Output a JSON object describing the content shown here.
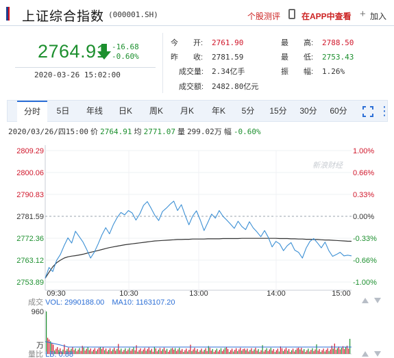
{
  "header": {
    "title": "上证综合指数",
    "code": "(000001.SH)",
    "links": {
      "review": "个股测评",
      "app": "在APP中查看",
      "add": "加入"
    }
  },
  "quote": {
    "price": "2764.91",
    "change": "-16.68",
    "change_pct": "-0.60%",
    "datetime": "2020-03-26 15:02:00",
    "direction": "down"
  },
  "stats": {
    "open_label": "今　　开:",
    "open": "2761.90",
    "prev_close_label": "昨　　收:",
    "prev_close": "2781.59",
    "volume_label": "成交量:",
    "volume": "2.34亿手",
    "amount_label": "成交额:",
    "amount": "2482.80亿元",
    "high_label": "最　　高:",
    "high": "2788.50",
    "low_label": "最　　低:",
    "low": "2753.43",
    "amplitude_label": "振　　幅:",
    "amplitude": "1.26%"
  },
  "tabs": [
    "分时",
    "5日",
    "年线",
    "日K",
    "周K",
    "月K",
    "年K",
    "5分",
    "15分",
    "30分",
    "60分"
  ],
  "active_tab": "分时",
  "info_line": {
    "date": "2020/03/26/四15:00",
    "price_label": "价",
    "price": "2764.91",
    "avg_label": "均",
    "avg": "2771.07",
    "vol_label": "量",
    "vol": "299.02万",
    "pct_label": "幅",
    "pct": "-0.60%"
  },
  "chart_data": {
    "type": "line",
    "y_ticks_left": [
      "2809.29",
      "2800.06",
      "2790.83",
      "2781.59",
      "2772.36",
      "2763.12",
      "2753.89"
    ],
    "y_ticks_right": [
      "1.00%",
      "0.66%",
      "0.33%",
      "0.00%",
      "-0.33%",
      "-0.66%",
      "-1.00%"
    ],
    "x_ticks": [
      "09:30",
      "10:30",
      "13:00",
      "14:00",
      "15:00"
    ],
    "ylim": [
      2753.89,
      2809.29
    ],
    "prev_close": 2781.59,
    "series": [
      {
        "values": [
          2755.5,
          2760.0,
          2758.3,
          2763.0,
          2765.5,
          2769.2,
          2772.5,
          2770.3,
          2775.3,
          2773.0,
          2770.7,
          2767.5,
          2764.0,
          2766.5,
          2770.0,
          2773.8,
          2776.8,
          2774.2,
          2778.0,
          2781.0,
          2783.2,
          2782.2,
          2784.0,
          2783.0,
          2780.0,
          2782.6,
          2786.2,
          2787.8,
          2785.0,
          2782.0,
          2779.8,
          2783.6,
          2785.0,
          2786.6,
          2788.0,
          2784.0,
          2786.5,
          2782.0,
          2778.0,
          2781.7,
          2783.9,
          2780.0,
          2775.6,
          2779.0,
          2782.5,
          2780.8,
          2784.0,
          2781.6,
          2780.0,
          2778.3,
          2776.5,
          2779.5,
          2777.3,
          2776.0,
          2779.3,
          2776.7,
          2775.0,
          2773.0,
          2775.6,
          2772.7,
          2768.7,
          2771.0,
          2770.0,
          2767.1,
          2769.2,
          2770.5,
          2767.3,
          2766.4,
          2764.0,
          2768.2,
          2771.0,
          2772.2,
          2770.4,
          2768.3,
          2770.7,
          2767.1,
          2764.7,
          2765.5,
          2766.4,
          2764.9,
          2765.2,
          2764.9
        ]
      },
      {
        "values": [
          2755.5,
          2758.0,
          2760.3,
          2762.0,
          2763.1,
          2764.0,
          2764.5,
          2764.8,
          2765.0,
          2765.3,
          2765.6,
          2766.0,
          2766.4,
          2766.8,
          2767.2,
          2767.6,
          2768.0,
          2768.4,
          2768.7,
          2769.0,
          2769.3,
          2769.6,
          2769.8,
          2770.0,
          2770.2,
          2770.4,
          2770.6,
          2770.8,
          2771.0,
          2771.2,
          2771.3,
          2771.4,
          2771.5,
          2771.6,
          2771.7,
          2771.8,
          2771.8,
          2771.9,
          2771.9,
          2772.0,
          2772.0,
          2772.0,
          2772.0,
          2772.1,
          2772.1,
          2772.1,
          2772.1,
          2772.2,
          2772.2,
          2772.2,
          2772.2,
          2772.2,
          2772.3,
          2772.3,
          2772.3,
          2772.3,
          2772.3,
          2772.3,
          2772.3,
          2772.3,
          2772.3,
          2772.3,
          2772.2,
          2772.2,
          2772.2,
          2772.1,
          2772.1,
          2772.0,
          2772.0,
          2771.9,
          2771.9,
          2771.8,
          2771.8,
          2771.7,
          2771.6,
          2771.6,
          2771.5,
          2771.4,
          2771.3,
          2771.2,
          2771.1,
          2771.07
        ]
      }
    ]
  },
  "volume": {
    "label": "成交",
    "vol_text": "VOL: 2990188.00",
    "ma_text": "MA10: 1163107.20",
    "y_max": "960",
    "unit": "万",
    "lb_label": "量比",
    "lb_text": "LB: 0.88"
  },
  "watermark": "新浪财经",
  "colors": {
    "up": "#d0162a",
    "down": "#1c8f2e",
    "price_line": "#3b8fd4",
    "avg_line": "#333333",
    "accent": "#2c6fd6"
  }
}
